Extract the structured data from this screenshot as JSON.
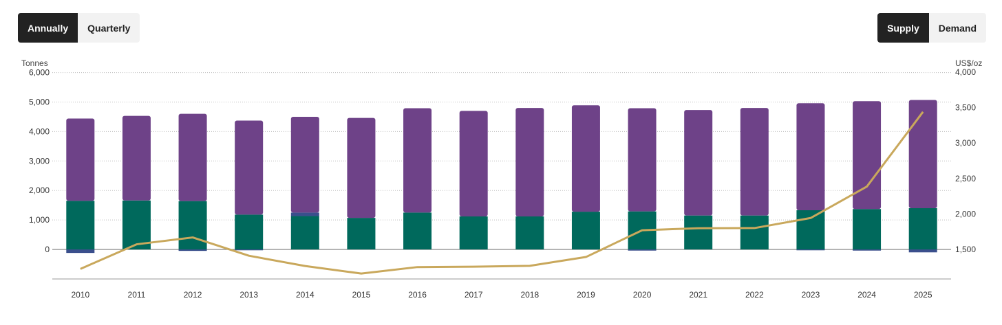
{
  "period_toggle": {
    "annually_label": "Annually",
    "quarterly_label": "Quarterly",
    "selected": "Annually"
  },
  "view_toggle": {
    "supply_label": "Supply",
    "demand_label": "Demand",
    "selected": "Supply"
  },
  "colors": {
    "recycling": "#6e4288",
    "mine": "#00695c",
    "hedging": "#3a4f8c",
    "price": "#c9a85c",
    "gridline": "#bdbdbd",
    "baseline": "#888888"
  },
  "chart_data": {
    "type": "bar",
    "stacked": true,
    "categories": [
      "2010",
      "2011",
      "2012",
      "2013",
      "2014",
      "2015",
      "2016",
      "2017",
      "2018",
      "2019",
      "2020",
      "2021",
      "2022",
      "2023",
      "2024",
      "2025"
    ],
    "series": [
      {
        "values": [
          1650,
          1660,
          1640,
          1180,
          1130,
          1070,
          1250,
          1120,
          1120,
          1280,
          1290,
          1150,
          1150,
          1330,
          1370,
          1400
        ]
      },
      {
        "values": [
          -120,
          0,
          -50,
          -30,
          120,
          0,
          0,
          0,
          0,
          0,
          -40,
          0,
          0,
          -30,
          -40,
          -100
        ]
      },
      {
        "values": [
          2790,
          2870,
          2960,
          3190,
          3250,
          3390,
          3540,
          3580,
          3680,
          3610,
          3500,
          3580,
          3650,
          3630,
          3660,
          3670
        ]
      }
    ],
    "line_series": {
      "axis": "right",
      "values": [
        1225,
        1572,
        1669,
        1411,
        1266,
        1160,
        1251,
        1257,
        1269,
        1393,
        1770,
        1799,
        1801,
        1943,
        2386,
        3440
      ]
    },
    "y_left": {
      "unit_label": "Tonnes",
      "ylim": [
        -1000,
        6000
      ],
      "ticks": [
        0,
        1000,
        2000,
        3000,
        4000,
        5000,
        6000
      ],
      "tick_labels": [
        "0",
        "1,000",
        "2,000",
        "3,000",
        "4,000",
        "5,000",
        "6,000"
      ]
    },
    "y_right": {
      "unit_label": "US$/oz",
      "ylim": [
        1000,
        4000
      ],
      "ticks": [
        1500,
        2000,
        2500,
        3000,
        3500,
        4000
      ],
      "tick_labels": [
        "1,500",
        "2,000",
        "2,500",
        "3,000",
        "3,500",
        "4,000"
      ]
    },
    "grid": true
  }
}
